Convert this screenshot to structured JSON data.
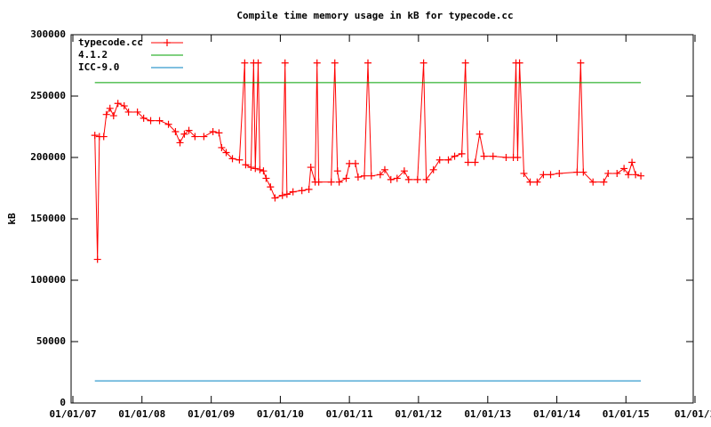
{
  "chart_data": {
    "type": "line",
    "title": "Compile time memory usage in kB for typecode.cc",
    "ylabel": "kB",
    "xlim": [
      "2007-01-01",
      "2016-01-01"
    ],
    "xticks": [
      {
        "value": "2007-01-01",
        "label": "01/01/07"
      },
      {
        "value": "2008-01-01",
        "label": "01/01/08"
      },
      {
        "value": "2009-01-01",
        "label": "01/01/09"
      },
      {
        "value": "2010-01-01",
        "label": "01/01/10"
      },
      {
        "value": "2011-01-01",
        "label": "01/01/11"
      },
      {
        "value": "2012-01-01",
        "label": "01/01/12"
      },
      {
        "value": "2013-01-01",
        "label": "01/01/13"
      },
      {
        "value": "2014-01-01",
        "label": "01/01/14"
      },
      {
        "value": "2015-01-01",
        "label": "01/01/15"
      },
      {
        "value": "2016-01-01",
        "label": "01/01/1"
      }
    ],
    "ylim": [
      0,
      300000
    ],
    "yticks": [
      0,
      50000,
      100000,
      150000,
      200000,
      250000,
      300000
    ],
    "legend": "top-left",
    "series": [
      {
        "name": "typecode.cc",
        "color": "#ff0000",
        "markers": true,
        "x": [
          "2007-04-27",
          "2007-05-11",
          "2007-05-21",
          "2007-06-13",
          "2007-06-27",
          "2007-07-16",
          "2007-08-04",
          "2007-08-27",
          "2007-09-29",
          "2007-10-22",
          "2007-12-08",
          "2008-01-10",
          "2008-02-16",
          "2008-04-03",
          "2008-05-20",
          "2008-06-26",
          "2008-07-20",
          "2008-08-12",
          "2008-09-05",
          "2008-10-07",
          "2008-11-23",
          "2009-01-10",
          "2009-02-11",
          "2009-02-25",
          "2009-03-21",
          "2009-04-23",
          "2009-05-30",
          "2009-06-27",
          "2009-07-02",
          "2009-07-30",
          "2009-08-13",
          "2009-08-22",
          "2009-09-06",
          "2009-09-15",
          "2009-10-04",
          "2009-10-18",
          "2009-11-10",
          "2009-12-04",
          "2010-01-12",
          "2010-01-26",
          "2010-02-05",
          "2010-03-09",
          "2010-04-25",
          "2010-06-01",
          "2010-06-11",
          "2010-07-04",
          "2010-07-14",
          "2010-07-23",
          "2010-09-27",
          "2010-10-16",
          "2010-10-30",
          "2010-11-08",
          "2010-12-15",
          "2011-01-01",
          "2011-02-02",
          "2011-02-16",
          "2011-03-21",
          "2011-04-09",
          "2011-04-27",
          "2011-06-13",
          "2011-07-07",
          "2011-08-08",
          "2011-09-10",
          "2011-10-18",
          "2011-11-10",
          "2011-12-27",
          "2012-01-28",
          "2012-02-11",
          "2012-03-20",
          "2012-04-22",
          "2012-06-07",
          "2012-07-10",
          "2012-08-17",
          "2012-09-05",
          "2012-09-19",
          "2012-10-26",
          "2012-11-19",
          "2012-12-12",
          "2013-01-29",
          "2013-04-08",
          "2013-05-16",
          "2013-05-30",
          "2013-06-08",
          "2013-06-18",
          "2013-07-11",
          "2013-08-13",
          "2013-09-19",
          "2013-10-22",
          "2013-11-29",
          "2014-01-14",
          "2014-04-18",
          "2014-05-07",
          "2014-05-21",
          "2014-07-11",
          "2014-09-06",
          "2014-09-29",
          "2014-11-15",
          "2014-12-22",
          "2015-01-14",
          "2015-02-02",
          "2015-02-21",
          "2015-03-21"
        ],
        "values": [
          218000,
          117000,
          217000,
          217000,
          235000,
          240000,
          234000,
          244000,
          242000,
          237000,
          237000,
          232000,
          230000,
          230000,
          227000,
          221000,
          212000,
          219000,
          222000,
          217000,
          217000,
          221000,
          220000,
          208000,
          204000,
          199000,
          198000,
          277000,
          194000,
          192000,
          277000,
          191000,
          277000,
          190000,
          189000,
          183000,
          176000,
          167000,
          169000,
          277000,
          170000,
          172000,
          173000,
          174000,
          192000,
          180000,
          277000,
          180000,
          180000,
          277000,
          189000,
          180000,
          183000,
          195000,
          195000,
          184000,
          185000,
          277000,
          185000,
          186000,
          190000,
          182000,
          183000,
          189000,
          182000,
          182000,
          277000,
          182000,
          190000,
          198000,
          198000,
          201000,
          203000,
          277000,
          196000,
          196000,
          219000,
          201000,
          201000,
          200000,
          200000,
          277000,
          200000,
          277000,
          187000,
          180000,
          180000,
          186000,
          186000,
          187000,
          188000,
          277000,
          188000,
          180000,
          180000,
          187000,
          187000,
          191000,
          186000,
          196000,
          186000,
          185000
        ]
      },
      {
        "name": "4.1.2",
        "color": "#00a000",
        "markers": false,
        "x": [
          "2007-04-27",
          "2015-03-21"
        ],
        "values": [
          261000,
          261000
        ]
      },
      {
        "name": "ICC-9.0",
        "color": "#0080c0",
        "markers": false,
        "x": [
          "2007-04-27",
          "2015-03-21"
        ],
        "values": [
          18000,
          18000
        ]
      }
    ]
  }
}
